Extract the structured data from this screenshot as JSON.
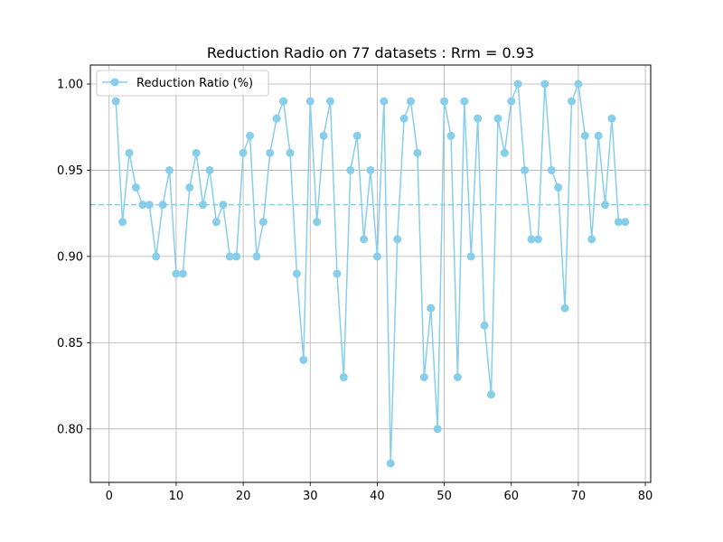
{
  "chart_data": {
    "type": "line",
    "title": "Reduction Radio on 77 datasets : Rrm = 0.93",
    "xlabel": "",
    "ylabel": "",
    "xlim": [
      -2.8,
      80.8
    ],
    "ylim": [
      0.769,
      1.011
    ],
    "x_ticks": [
      0,
      10,
      20,
      30,
      40,
      50,
      60,
      70,
      80
    ],
    "y_ticks": [
      0.8,
      0.85,
      0.9,
      0.95,
      1.0
    ],
    "x_tick_labels": [
      "0",
      "10",
      "20",
      "30",
      "40",
      "50",
      "60",
      "70",
      "80"
    ],
    "y_tick_labels": [
      "0.80",
      "0.85",
      "0.90",
      "0.95",
      "1.00"
    ],
    "grid": true,
    "legend_position": "top-left",
    "series": [
      {
        "name": "Reduction Ratio (%)",
        "color": "#87ceeb",
        "marker": "circle",
        "x": [
          1,
          2,
          3,
          4,
          5,
          6,
          7,
          8,
          9,
          10,
          11,
          12,
          13,
          14,
          15,
          16,
          17,
          18,
          19,
          20,
          21,
          22,
          23,
          24,
          25,
          26,
          27,
          28,
          29,
          30,
          31,
          32,
          33,
          34,
          35,
          36,
          37,
          38,
          39,
          40,
          41,
          42,
          43,
          44,
          45,
          46,
          47,
          48,
          49,
          50,
          51,
          52,
          53,
          54,
          55,
          56,
          57,
          58,
          59,
          60,
          61,
          62,
          63,
          64,
          65,
          66,
          67,
          68,
          69,
          70,
          71,
          72,
          73,
          74,
          75,
          76,
          77
        ],
        "values": [
          0.99,
          0.92,
          0.96,
          0.94,
          0.93,
          0.93,
          0.9,
          0.93,
          0.95,
          0.89,
          0.89,
          0.94,
          0.96,
          0.93,
          0.95,
          0.92,
          0.93,
          0.9,
          0.9,
          0.96,
          0.97,
          0.9,
          0.92,
          0.96,
          0.98,
          0.99,
          0.96,
          0.89,
          0.84,
          0.99,
          0.92,
          0.97,
          0.99,
          0.89,
          0.83,
          0.95,
          0.97,
          0.91,
          0.95,
          0.9,
          0.99,
          0.78,
          0.91,
          0.98,
          0.99,
          0.96,
          0.83,
          0.87,
          0.8,
          0.99,
          0.97,
          0.83,
          0.99,
          0.9,
          0.98,
          0.86,
          0.82,
          0.98,
          0.96,
          0.99,
          1.0,
          0.95,
          0.91,
          0.91,
          1.0,
          0.95,
          0.94,
          0.87,
          0.99,
          1.0,
          0.97,
          0.91,
          0.97,
          0.93,
          0.98,
          0.92,
          0.92
        ]
      }
    ],
    "reference_line": {
      "value": 0.93,
      "style": "dashed",
      "color": "#87ceeb"
    }
  }
}
